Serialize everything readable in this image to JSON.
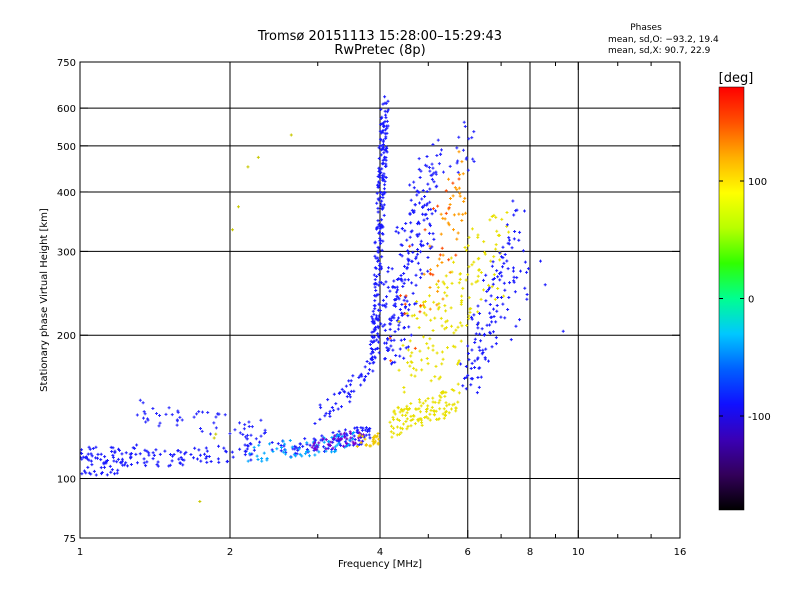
{
  "chart_data": {
    "type": "scatter",
    "title": "Tromsø 20151113 15:28:00–15:29:43",
    "subtitle": "RwPretec (8p)",
    "phases_header": "Phases",
    "phases_o": "mean, sd,O: −93.2, 19.4",
    "phases_x": "mean, sd,X:  90.7, 22.9",
    "xlabel": "Frequency [MHz]",
    "ylabel": "Stationary phase Virtual Height [km]",
    "xscale": "log",
    "yscale": "log",
    "xlim": [
      1,
      16
    ],
    "ylim": [
      75,
      750
    ],
    "xticks": [
      1,
      2,
      4,
      6,
      8,
      10,
      16
    ],
    "xminor": [
      3,
      5,
      7,
      9,
      12,
      14
    ],
    "yticks": [
      75,
      100,
      200,
      300,
      400,
      500,
      600,
      750
    ],
    "grid_x": [
      2,
      4,
      6,
      8,
      10
    ],
    "grid_y": [
      100,
      200,
      300,
      400,
      500,
      600
    ],
    "colorbar": {
      "label": "[deg]",
      "range": [
        -180,
        180
      ],
      "ticks": [
        100,
        0,
        -100
      ],
      "stops": [
        "#000000",
        "#33005a",
        "#3a00b5",
        "#1010ff",
        "#0060ff",
        "#00c8ff",
        "#00ff90",
        "#30ff00",
        "#b8ff00",
        "#ffff00",
        "#ffb000",
        "#ff5000",
        "#ff0000"
      ]
    },
    "traces": [
      {
        "x": [
          1.0,
          1.2,
          1.5,
          2.0,
          2.5,
          3.0,
          3.5,
          3.8
        ],
        "y": [
          113,
          111,
          110,
          113,
          115,
          118,
          122,
          124
        ],
        "color": "#1a1aff",
        "spread": 0.04,
        "n": 220
      },
      {
        "x": [
          2.2,
          2.8,
          3.2,
          3.6
        ],
        "y": [
          113,
          116,
          118,
          121
        ],
        "color": "#00a8ff",
        "spread": 0.04,
        "n": 70
      },
      {
        "x": [
          2.9,
          3.3,
          3.7
        ],
        "y": [
          117,
          120,
          123
        ],
        "color": "#7a00d0",
        "spread": 0.03,
        "n": 40
      },
      {
        "x": [
          3.6,
          3.85,
          4.0
        ],
        "y": [
          120,
          121,
          122
        ],
        "color": "#f0c800",
        "spread": 0.03,
        "n": 25
      },
      {
        "x": [
          1.3,
          1.6,
          2.0,
          2.4
        ],
        "y": [
          140,
          132,
          130,
          125
        ],
        "color": "#2a2aff",
        "spread": 0.05,
        "n": 60
      },
      {
        "x": [
          1.0,
          1.15,
          1.3
        ],
        "y": [
          108,
          106,
          112
        ],
        "color": "#1a1aff",
        "spread": 0.05,
        "n": 50
      },
      {
        "x": [
          3.0,
          3.4,
          3.8,
          3.9
        ],
        "y": [
          135,
          150,
          170,
          200
        ],
        "color": "#1a1aff",
        "spread": 0.05,
        "n": 60
      },
      {
        "x": [
          3.9,
          4.0,
          4.1
        ],
        "y": [
          180,
          350,
          620
        ],
        "color": "#1a1aff",
        "spread": 0.06,
        "n": 220
      },
      {
        "x": [
          4.0,
          4.3,
          4.6,
          5.0
        ],
        "y": [
          200,
          220,
          300,
          400
        ],
        "color": "#1a1aff",
        "spread": 0.18,
        "n": 220
      },
      {
        "x": [
          4.2,
          4.6,
          5.2,
          5.8
        ],
        "y": [
          130,
          135,
          140,
          150
        ],
        "color": "#e8e000",
        "spread": 0.06,
        "n": 120
      },
      {
        "x": [
          4.5,
          5.2,
          6.0,
          7.0
        ],
        "y": [
          180,
          200,
          250,
          300
        ],
        "color": "#e8e000",
        "spread": 0.2,
        "n": 160
      },
      {
        "x": [
          5.0,
          5.6,
          6.0
        ],
        "y": [
          250,
          350,
          450
        ],
        "color": "#ff9a00",
        "spread": 0.15,
        "n": 45
      },
      {
        "x": [
          4.4,
          5.0,
          5.6
        ],
        "y": [
          200,
          280,
          380
        ],
        "color": "#ff4a00",
        "spread": 0.2,
        "n": 25
      },
      {
        "x": [
          6.0,
          6.5,
          7.0,
          7.5
        ],
        "y": [
          170,
          200,
          260,
          330
        ],
        "color": "#1a1aff",
        "spread": 0.15,
        "n": 130
      },
      {
        "x": [
          4.8,
          5.5,
          6.2
        ],
        "y": [
          420,
          470,
          520
        ],
        "color": "#2a2aff",
        "spread": 0.12,
        "n": 40
      },
      {
        "x": [
          7.2,
          7.8,
          8.0,
          9.5
        ],
        "y": [
          190,
          230,
          340,
          195
        ],
        "color": "#1a1aff",
        "spread": 0.05,
        "n": 12
      },
      {
        "x": [
          1.3,
          1.4,
          1.8,
          2.1,
          2.6,
          2.7
        ],
        "y": [
          95,
          98,
          90,
          430,
          480,
          540
        ],
        "color": "#c8c800",
        "spread": 0.05,
        "n": 8
      }
    ]
  }
}
